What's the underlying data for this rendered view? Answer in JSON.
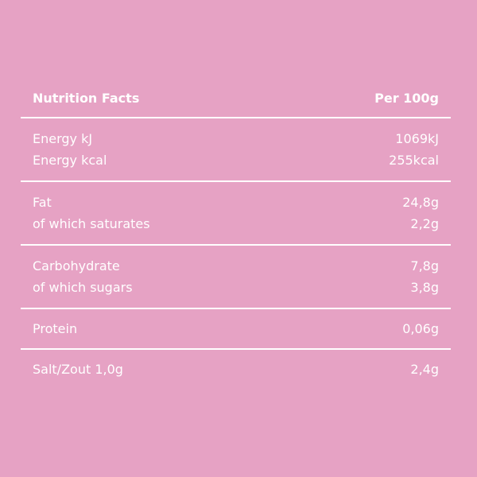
{
  "header": {
    "title": "Nutrition Facts",
    "per": "Per 100g"
  },
  "groups": [
    {
      "rows": [
        {
          "label": "Energy kJ",
          "value": "1069kJ"
        },
        {
          "label": "Energy kcal",
          "value": "255kcal"
        }
      ]
    },
    {
      "rows": [
        {
          "label": "Fat",
          "value": "24,8g"
        },
        {
          "label": "of which saturates",
          "value": "2,2g"
        }
      ]
    },
    {
      "rows": [
        {
          "label": "Carbohydrate",
          "value": "7,8g"
        },
        {
          "label": "of which sugars",
          "value": "3,8g"
        }
      ]
    },
    {
      "rows": [
        {
          "label": "Protein",
          "value": "0,06g"
        }
      ]
    },
    {
      "rows": [
        {
          "label": "Salt/Zout 1,0g",
          "value": "2,4g"
        }
      ]
    }
  ],
  "colors": {
    "background": "#e6a2c4",
    "text": "#ffffff"
  }
}
